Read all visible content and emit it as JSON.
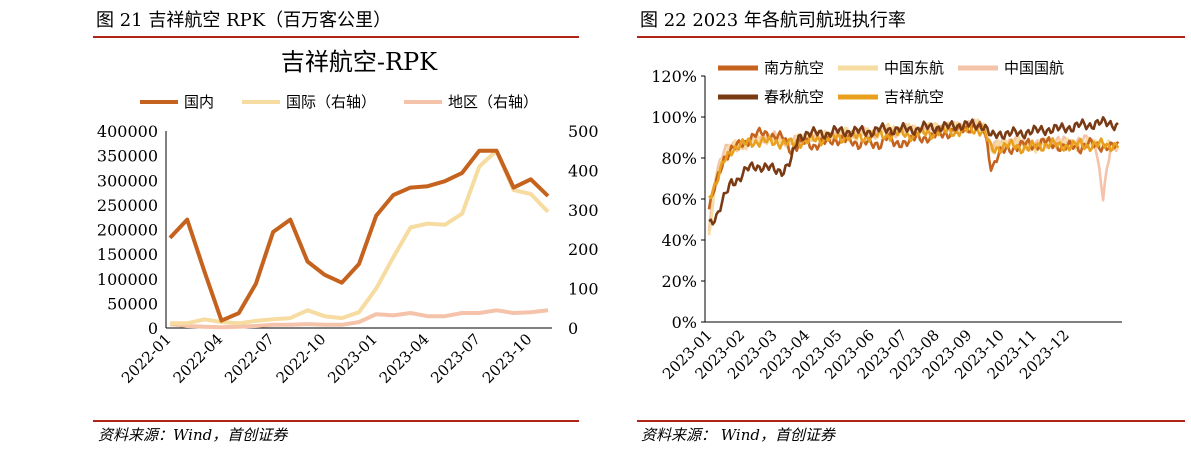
{
  "left_figure": {
    "caption": "图 21 吉祥航空 RPK（百万客公里）",
    "source": "资料来源：Wind，首创证券"
  },
  "right_figure": {
    "caption": "图 22 2023 年各航司航班执行率",
    "source": "资料来源： Wind，首创证券"
  },
  "chart_data": [
    {
      "type": "line",
      "title": "吉祥航空-RPK",
      "xlabel": "",
      "ylabel": "",
      "ylim": [
        0,
        400000
      ],
      "y2lim": [
        0,
        500
      ],
      "yticks": [
        "400000",
        "350000",
        "300000",
        "250000",
        "200000",
        "150000",
        "100000",
        "50000",
        "0"
      ],
      "y2ticks": [
        "500",
        "400",
        "300",
        "200",
        "100",
        "0"
      ],
      "xtick_labels": [
        "2022-01",
        "2022-04",
        "2022-07",
        "2022-10",
        "2023-01",
        "2023-04",
        "2023-07",
        "2023-10"
      ],
      "x": [
        "2022-01",
        "2022-02",
        "2022-03",
        "2022-04",
        "2022-05",
        "2022-06",
        "2022-07",
        "2022-08",
        "2022-09",
        "2022-10",
        "2022-11",
        "2022-12",
        "2023-01",
        "2023-02",
        "2023-03",
        "2023-04",
        "2023-05",
        "2023-06",
        "2023-07",
        "2023-08",
        "2023-09",
        "2023-10",
        "2023-11"
      ],
      "series": [
        {
          "name": "国内",
          "axis": "left",
          "color": "#c4621e",
          "values": [
            183000,
            220000,
            115000,
            15000,
            30000,
            90000,
            195000,
            220000,
            135000,
            108000,
            92000,
            130000,
            228000,
            270000,
            285000,
            288000,
            298000,
            315000,
            360000,
            360000,
            285000,
            302000,
            268000
          ]
        },
        {
          "name": "国际（右轴）",
          "axis": "right",
          "color": "#f6dca0",
          "values": [
            12,
            12,
            22,
            15,
            12,
            18,
            22,
            25,
            45,
            30,
            25,
            40,
            100,
            180,
            255,
            265,
            262,
            290,
            410,
            450,
            350,
            340,
            295
          ]
        },
        {
          "name": "地区（右轴）",
          "axis": "right",
          "color": "#f4c3aa",
          "values": [
            10,
            5,
            3,
            2,
            3,
            5,
            8,
            8,
            10,
            8,
            8,
            15,
            35,
            32,
            38,
            30,
            30,
            38,
            38,
            45,
            38,
            40,
            45
          ]
        }
      ]
    },
    {
      "type": "line",
      "title": "",
      "xlabel": "",
      "ylabel": "",
      "ylim": [
        0,
        120
      ],
      "yticks": [
        "120%",
        "100%",
        "80%",
        "60%",
        "40%",
        "20%",
        "0%"
      ],
      "xtick_labels": [
        "2023-01",
        "2023-02",
        "2023-03",
        "2023-04",
        "2023-05",
        "2023-06",
        "2023-07",
        "2023-08",
        "2023-09",
        "2023-10",
        "2023-11",
        "2023-12"
      ],
      "series": [
        {
          "name": "南方航空",
          "color": "#c4621e",
          "values": [
            55,
            68,
            80,
            84,
            86,
            88,
            91,
            92,
            92,
            90,
            90,
            84,
            86,
            88,
            86,
            87,
            88,
            89,
            89,
            88,
            87,
            88,
            86,
            87,
            91,
            86,
            88,
            88,
            90,
            90,
            90,
            92,
            92,
            93,
            94,
            95,
            95,
            94,
            75,
            82,
            84,
            85,
            86,
            87,
            86,
            88,
            87,
            86,
            85,
            86,
            85,
            87,
            86,
            86,
            85,
            86
          ]
        },
        {
          "name": "中国东航",
          "color": "#f6dca0",
          "values": [
            40,
            72,
            82,
            85,
            87,
            87,
            89,
            89,
            90,
            89,
            88,
            88,
            89,
            90,
            90,
            91,
            91,
            91,
            92,
            93,
            91,
            92,
            92,
            93,
            94,
            94,
            93,
            94,
            94,
            94,
            95,
            95,
            95,
            95,
            95,
            96,
            96,
            96,
            82,
            86,
            88,
            88,
            87,
            86,
            85,
            87,
            88,
            87,
            87,
            86,
            87,
            87,
            88,
            87,
            85,
            86
          ]
        },
        {
          "name": "中国国航",
          "color": "#f4c3aa",
          "values": [
            45,
            74,
            84,
            85,
            86,
            87,
            88,
            90,
            90,
            90,
            89,
            88,
            88,
            90,
            90,
            90,
            91,
            91,
            91,
            92,
            92,
            92,
            92,
            93,
            93,
            93,
            94,
            94,
            94,
            94,
            94,
            95,
            95,
            95,
            96,
            96,
            96,
            95,
            84,
            87,
            88,
            88,
            87,
            87,
            86,
            87,
            88,
            88,
            88,
            88,
            88,
            89,
            87,
            60,
            85,
            87
          ]
        },
        {
          "name": "春秋航空",
          "color": "#7a3b14",
          "values": [
            48,
            52,
            60,
            68,
            70,
            74,
            76,
            76,
            75,
            74,
            74,
            78,
            90,
            92,
            92,
            92,
            92,
            93,
            93,
            93,
            93,
            93,
            93,
            94,
            94,
            94,
            94,
            94,
            94,
            95,
            95,
            95,
            95,
            96,
            96,
            96,
            96,
            96,
            90,
            92,
            92,
            92,
            92,
            93,
            93,
            94,
            94,
            94,
            95,
            95,
            96,
            96,
            97,
            97,
            97,
            96
          ]
        },
        {
          "name": "吉祥航空",
          "color": "#e9a01f",
          "values": [
            62,
            68,
            78,
            84,
            86,
            87,
            88,
            88,
            88,
            88,
            87,
            87,
            88,
            88,
            89,
            89,
            90,
            90,
            90,
            91,
            90,
            90,
            91,
            91,
            91,
            92,
            92,
            91,
            92,
            92,
            92,
            93,
            93,
            93,
            93,
            94,
            94,
            93,
            84,
            85,
            86,
            86,
            85,
            85,
            86,
            86,
            87,
            86,
            86,
            86,
            87,
            86,
            86,
            87,
            86,
            86
          ]
        }
      ]
    }
  ]
}
